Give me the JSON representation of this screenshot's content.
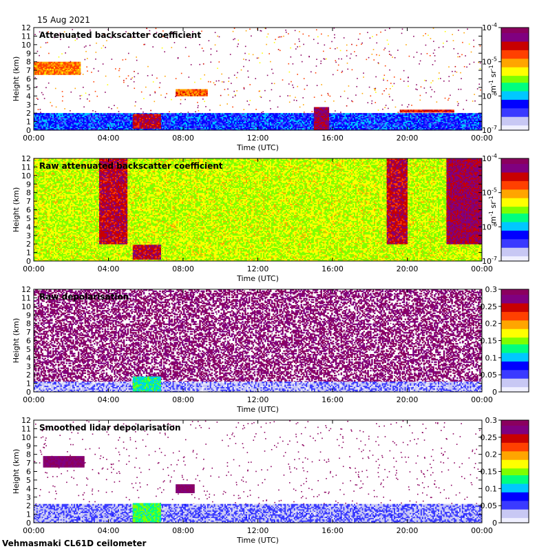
{
  "figure": {
    "date": "15 Aug 2021",
    "footer": "Vehmasmaki CL61D ceilometer"
  },
  "colors": {
    "background": "#ffffff",
    "frame": "#000000",
    "colormap": [
      "#f0f0ff",
      "#c8c8f4",
      "#3a3aff",
      "#0000ff",
      "#00c8ff",
      "#00ff7f",
      "#7fff00",
      "#ffff00",
      "#ffa500",
      "#ff4000",
      "#c80000",
      "#800080",
      "#8b005f"
    ]
  },
  "chart_data": [
    {
      "type": "heatmap",
      "title": "Attenuated backscatter coefficient",
      "xlabel": "Time (UTC)",
      "ylabel": "Height (km)",
      "xticks": [
        "00:00",
        "04:00",
        "08:00",
        "12:00",
        "16:00",
        "20:00",
        "00:00"
      ],
      "yticks": [
        0,
        1,
        2,
        3,
        4,
        5,
        6,
        7,
        8,
        9,
        10,
        11,
        12
      ],
      "ylim": [
        0,
        12
      ],
      "xlim_hours": [
        0,
        24
      ],
      "colorbar": {
        "unit": "m-1 sr-1",
        "scale": "log",
        "ticks": [
          "10-7",
          "10-6",
          "10-5",
          "10-4"
        ],
        "range": [
          1e-07,
          0.0001
        ]
      },
      "features": [
        {
          "name": "boundary layer",
          "t0": 0,
          "t1": 24,
          "h0": 0,
          "h1": 2.0,
          "level": 0.25
        },
        {
          "name": "low cloud",
          "t0": 5.3,
          "t1": 6.8,
          "h0": 0.2,
          "h1": 1.9,
          "level": 0.85
        },
        {
          "name": "elevated layer",
          "t0": 0,
          "t1": 2.5,
          "h0": 6.5,
          "h1": 8.0,
          "level": 0.7
        },
        {
          "name": "elevated layer",
          "t0": 7.6,
          "t1": 9.3,
          "h0": 4.0,
          "h1": 4.8,
          "level": 0.72
        },
        {
          "name": "thin layer",
          "t0": 19.6,
          "t1": 22.5,
          "h0": 2.1,
          "h1": 2.4,
          "level": 0.8
        },
        {
          "name": "precipitation shafts",
          "t0": 15.0,
          "t1": 15.8,
          "h0": 0.0,
          "h1": 2.7,
          "level": 0.9
        }
      ]
    },
    {
      "type": "heatmap",
      "title": "Raw attenuated backscatter coefficient",
      "xlabel": "Time (UTC)",
      "ylabel": "Height (km)",
      "xticks": [
        "00:00",
        "04:00",
        "08:00",
        "12:00",
        "16:00",
        "20:00",
        "00:00"
      ],
      "yticks": [
        0,
        1,
        2,
        3,
        4,
        5,
        6,
        7,
        8,
        9,
        10,
        11,
        12
      ],
      "ylim": [
        0,
        12
      ],
      "xlim_hours": [
        0,
        24
      ],
      "colorbar": {
        "unit": "m-1 sr-1",
        "scale": "log",
        "ticks": [
          "10-7",
          "10-6",
          "10-5",
          "10-4"
        ],
        "range": [
          1e-07,
          0.0001
        ]
      },
      "features": [
        {
          "name": "noisy background",
          "t0": 0,
          "t1": 24,
          "h0": 0,
          "h1": 12,
          "level": 0.55
        },
        {
          "name": "daylight noise",
          "t0": 3.5,
          "t1": 5.0,
          "h0": 2.0,
          "h1": 12,
          "level": 0.85
        },
        {
          "name": "low cloud",
          "t0": 5.3,
          "t1": 6.8,
          "h0": 0.2,
          "h1": 1.9,
          "level": 0.85
        },
        {
          "name": "daylight noise",
          "t0": 18.9,
          "t1": 20.0,
          "h0": 2.0,
          "h1": 12,
          "level": 0.85
        },
        {
          "name": "daylight noise",
          "t0": 22.1,
          "t1": 24,
          "h0": 2.0,
          "h1": 12,
          "level": 0.9
        }
      ]
    },
    {
      "type": "heatmap",
      "title": "Raw depolarisation",
      "xlabel": "Time (UTC)",
      "ylabel": "Height (km)",
      "xticks": [
        "00:00",
        "04:00",
        "08:00",
        "12:00",
        "16:00",
        "20:00",
        "00:00"
      ],
      "yticks": [
        0,
        1,
        2,
        3,
        4,
        5,
        6,
        7,
        8,
        9,
        10,
        11,
        12
      ],
      "ylim": [
        0,
        12
      ],
      "xlim_hours": [
        0,
        24
      ],
      "colorbar": {
        "unit": "",
        "scale": "linear",
        "ticks": [
          "0",
          "0.05",
          "0.1",
          "0.15",
          "0.2",
          "0.25",
          "0.3"
        ],
        "range": [
          0,
          0.3
        ]
      },
      "features": [
        {
          "name": "noise",
          "t0": 0,
          "t1": 24,
          "h0": 1.0,
          "h1": 12,
          "level": 0.97
        },
        {
          "name": "low layer",
          "t0": 0,
          "t1": 24,
          "h0": 0,
          "h1": 1.2,
          "level": 0.1
        },
        {
          "name": "low cloud",
          "t0": 5.3,
          "t1": 6.8,
          "h0": 0.1,
          "h1": 1.8,
          "level": 0.4
        }
      ]
    },
    {
      "type": "heatmap",
      "title": "Smoothed lidar depolarisation",
      "xlabel": "Time (UTC)",
      "ylabel": "Height (km)",
      "xticks": [
        "00:00",
        "04:00",
        "08:00",
        "12:00",
        "16:00",
        "20:00",
        "00:00"
      ],
      "yticks": [
        0,
        1,
        2,
        3,
        4,
        5,
        6,
        7,
        8,
        9,
        10,
        11,
        12
      ],
      "ylim": [
        0,
        12
      ],
      "xlim_hours": [
        0,
        24
      ],
      "colorbar": {
        "unit": "",
        "scale": "linear",
        "ticks": [
          "0",
          "0.05",
          "0.1",
          "0.15",
          "0.2",
          "0.25",
          "0.3"
        ],
        "range": [
          0,
          0.3
        ]
      },
      "features": [
        {
          "name": "boundary layer",
          "t0": 0,
          "t1": 24,
          "h0": 0,
          "h1": 2.2,
          "level": 0.12
        },
        {
          "name": "low cloud",
          "t0": 5.3,
          "t1": 6.8,
          "h0": 0.1,
          "h1": 2.3,
          "level": 0.45
        },
        {
          "name": "elevated layer",
          "t0": 0.5,
          "t1": 2.7,
          "h0": 6.5,
          "h1": 7.8,
          "level": 0.97
        },
        {
          "name": "elevated layer",
          "t0": 7.6,
          "t1": 8.6,
          "h0": 3.5,
          "h1": 4.5,
          "level": 0.97
        }
      ]
    }
  ]
}
